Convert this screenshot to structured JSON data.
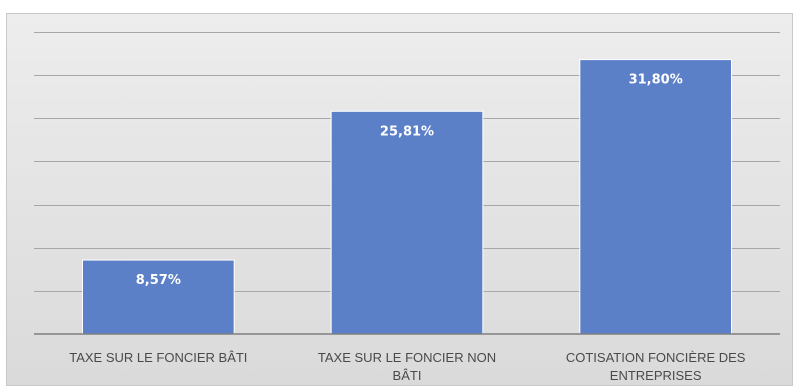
{
  "chart_data": {
    "type": "bar",
    "title": "",
    "xlabel": "",
    "ylabel": "",
    "categories": [
      "TAXE SUR LE FONCIER BÂTI",
      "TAXE SUR LE FONCIER NON BÂTI",
      "COTISATION FONCIÈRE DES ENTREPRISES"
    ],
    "category_lines": [
      [
        "TAXE SUR LE FONCIER BÂTI"
      ],
      [
        "TAXE SUR LE FONCIER NON",
        "BÂTI"
      ],
      [
        "COTISATION FONCIÈRE DES",
        "ENTREPRISES"
      ]
    ],
    "values": [
      8.57,
      25.81,
      31.8
    ],
    "data_labels": [
      "8,57%",
      "25,81%",
      "31,80%"
    ],
    "ylim": [
      0,
      35
    ],
    "grid": true,
    "legend": "none",
    "bar_color": "#5b80c8",
    "label_color": "#ffffff"
  }
}
